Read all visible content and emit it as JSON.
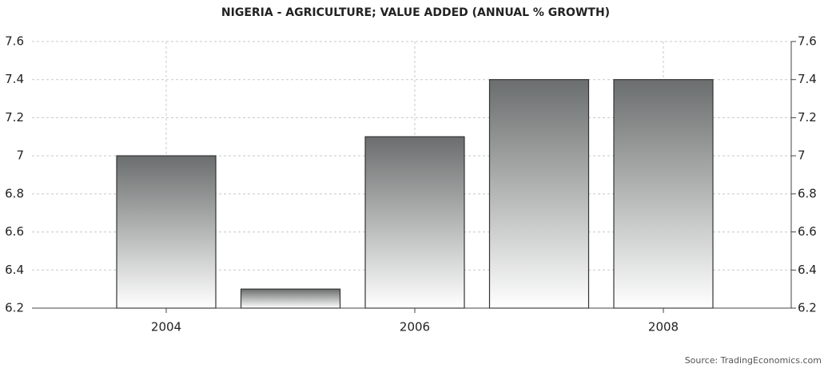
{
  "chart_data": {
    "type": "bar",
    "title": "NIGERIA - AGRICULTURE; VALUE ADDED (ANNUAL % GROWTH)",
    "categories": [
      "2004",
      null,
      "2006",
      null,
      "2008"
    ],
    "values": [
      7.0,
      6.3,
      7.1,
      7.4,
      7.4
    ],
    "color": "#6b6e6e",
    "ylim": [
      6.2,
      7.6
    ],
    "yticks": [
      6.2,
      6.4,
      6.6,
      6.8,
      7,
      7.2,
      7.4,
      7.6
    ],
    "y2lim": [
      6.2,
      7.6
    ],
    "y2ticks": [
      6.2,
      6.4,
      6.6,
      6.8,
      7,
      7.2,
      7.4,
      7.6
    ],
    "grid": true,
    "source": "Source: TradingEconomics.com"
  }
}
